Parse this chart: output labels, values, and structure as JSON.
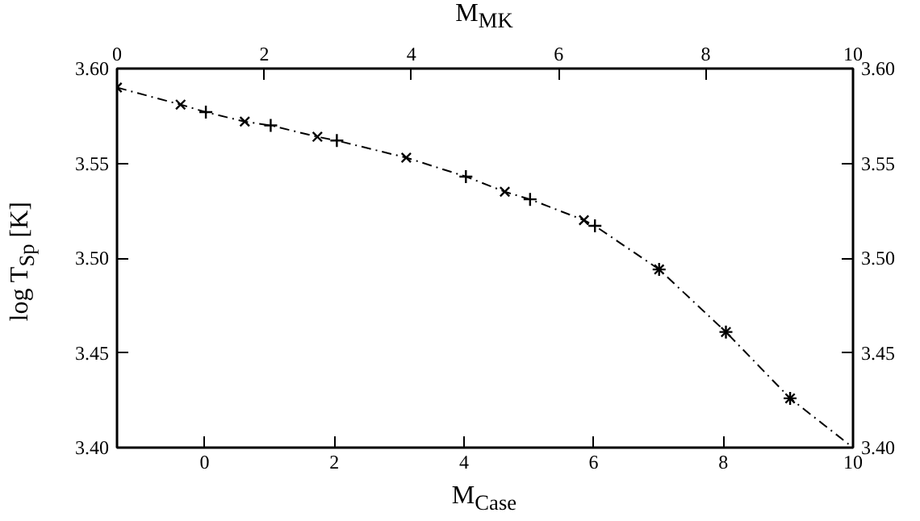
{
  "chart_data": {
    "type": "line",
    "xlabel": "M$_{Case}$",
    "ylabel": "log T$_{Sp}$ [K]",
    "x2label": "M$_{MK}$",
    "xlim": [
      -1.35,
      10
    ],
    "xticks": [
      0,
      2,
      4,
      6,
      8,
      10
    ],
    "x2lim": [
      0,
      10
    ],
    "x2ticks": [
      0,
      2,
      4,
      6,
      8,
      10
    ],
    "ylim": [
      3.4,
      3.6
    ],
    "yticks": [
      {
        "value": 3.4,
        "label": "3.40"
      },
      {
        "value": 3.45,
        "label": "3.45"
      },
      {
        "value": 3.5,
        "label": "3.50"
      },
      {
        "value": 3.55,
        "label": "3.55"
      },
      {
        "value": 3.6,
        "label": "3.60"
      }
    ],
    "y2lim": [
      3.4,
      3.6
    ],
    "y2ticks": [
      {
        "value": 3.4,
        "label": "3.40"
      },
      {
        "value": 3.45,
        "label": "3.45"
      },
      {
        "value": 3.5,
        "label": "3.50"
      },
      {
        "value": 3.55,
        "label": "3.55"
      },
      {
        "value": 3.6,
        "label": "3.60"
      }
    ],
    "grid": false,
    "series": [
      {
        "type": "line",
        "color": "#000000",
        "line_style": "dashed",
        "marker": "none",
        "x": [
          -1.35,
          -0.37,
          0.02,
          0.62,
          1.02,
          1.74,
          2.04,
          3.11,
          4.03,
          4.63,
          5.02,
          5.85,
          6.02,
          7.01,
          8.04,
          9.03,
          10
        ],
        "values": [
          3.59,
          3.581,
          3.577,
          3.572,
          3.57,
          3.564,
          3.562,
          3.553,
          3.543,
          3.535,
          3.531,
          3.52,
          3.517,
          3.494,
          3.461,
          3.426,
          3.4
        ]
      },
      {
        "type": "scatter",
        "color": "#000000",
        "marker": "x",
        "x": [
          -1.35,
          -0.37,
          0.62,
          1.74,
          3.11,
          4.63,
          5.85,
          7.01,
          8.04,
          9.03
        ],
        "values": [
          3.59,
          3.581,
          3.572,
          3.564,
          3.553,
          3.535,
          3.52,
          3.494,
          3.461,
          3.426
        ]
      },
      {
        "type": "scatter",
        "color": "#000000",
        "marker": "cross",
        "x": [
          0.02,
          1.02,
          2.04,
          4.03,
          5.02,
          6.02,
          7.01,
          8.04,
          9.03
        ],
        "values": [
          3.577,
          3.57,
          3.562,
          3.543,
          3.531,
          3.517,
          3.494,
          3.461,
          3.426
        ]
      }
    ]
  }
}
